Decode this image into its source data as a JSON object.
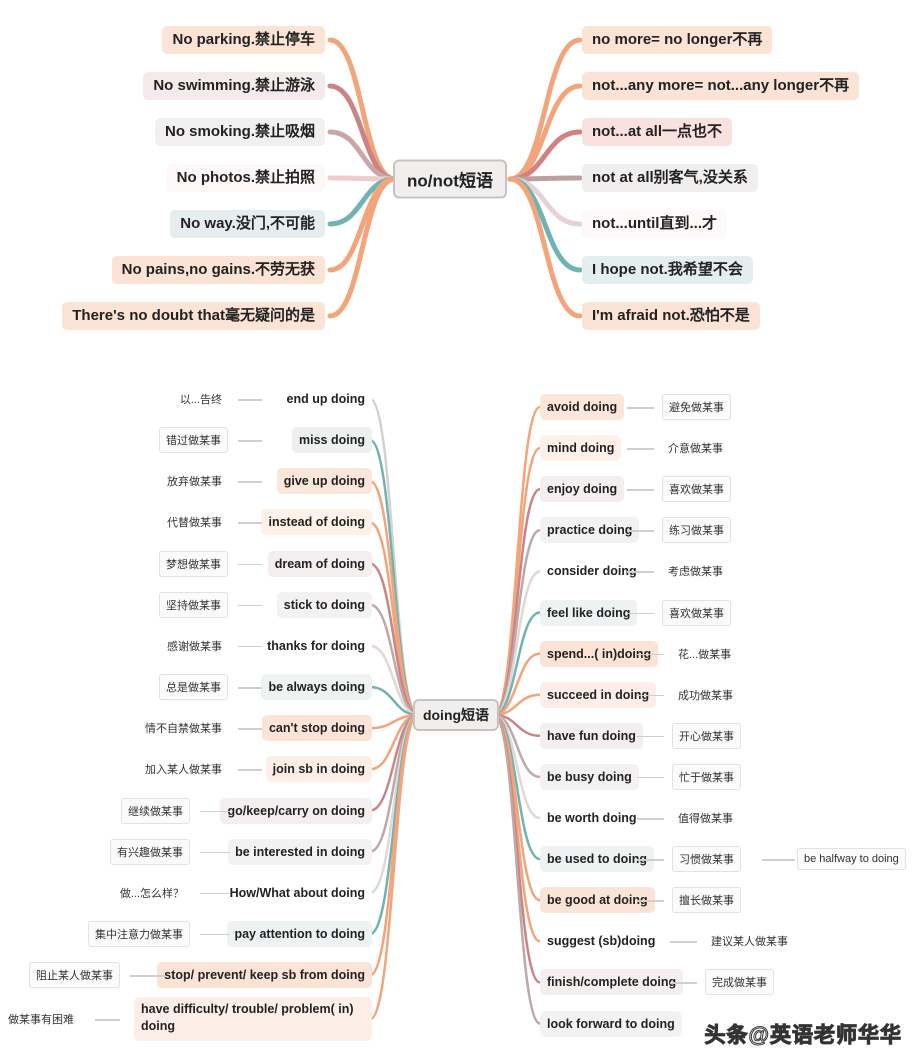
{
  "top_map": {
    "center": "no/not短语",
    "left": [
      {
        "text": "No parking.禁止停车",
        "bg": "#fbe3d6",
        "line": "#f3a47a"
      },
      {
        "text": "No swimming.禁止游泳",
        "bg": "#f4eaea",
        "line": "#c98585"
      },
      {
        "text": "No smoking.禁止吸烟",
        "bg": "#f2efef",
        "line": "#c9a7a7"
      },
      {
        "text": "No photos.禁止拍照",
        "bg": "#fdf8f7",
        "line": "#efcccc"
      },
      {
        "text": "No way.没门,不可能",
        "bg": "#e5eeee",
        "line": "#6fb4b4"
      },
      {
        "text": "No pains,no gains.不劳无获",
        "bg": "#fbe3d6",
        "line": "#f3a47a"
      },
      {
        "text": "There's no doubt that毫无疑问的是",
        "bg": "#fbe3d6",
        "line": "#f3a47a"
      }
    ],
    "right": [
      {
        "text": "no more= no longer不再",
        "bg": "#fbe3d6",
        "line": "#f3a47a"
      },
      {
        "text": "not...any more= not...any longer不再",
        "bg": "#fbe3d6",
        "line": "#f3a47a"
      },
      {
        "text": "not...at all一点也不",
        "bg": "#f8e1df",
        "line": "#d58080"
      },
      {
        "text": "not at all别客气,没关系",
        "bg": "#f1eeee",
        "line": "#bca0a0"
      },
      {
        "text": "not...until直到...才",
        "bg": "#fdf9f8",
        "line": "#e9cfd6"
      },
      {
        "text": "I hope not.我希望不会",
        "bg": "#e5eeee",
        "line": "#6fb4b4"
      },
      {
        "text": "I'm afraid not.恐怕不是",
        "bg": "#fbe3d6",
        "line": "#f3a47a"
      }
    ]
  },
  "bottom_map": {
    "center": "doing短语",
    "left": [
      {
        "en": "end up doing",
        "zh": "以...告终",
        "bg": "#ffffff",
        "box": false,
        "line": "#d8d0d0"
      },
      {
        "en": "miss doing",
        "zh": "错过做某事",
        "bg": "#eef0f0",
        "box": true,
        "line": "#6fb4b4"
      },
      {
        "en": "give up doing",
        "zh": "放弃做某事",
        "bg": "#fbe6da",
        "box": false,
        "line": "#f3a47a"
      },
      {
        "en": "instead of doing",
        "zh": "代替做某事",
        "bg": "#fdf1ea",
        "box": false,
        "line": "#f3a47a"
      },
      {
        "en": "dream of doing",
        "zh": "梦想做某事",
        "bg": "#f4eeee",
        "box": true,
        "line": "#c98585"
      },
      {
        "en": "stick to doing",
        "zh": "坚持做某事",
        "bg": "#f3f1f1",
        "box": true,
        "line": "#c0a8a8"
      },
      {
        "en": "thanks for doing",
        "zh": "感谢做某事",
        "bg": "#ffffff",
        "box": false,
        "line": "#e2d6d8"
      },
      {
        "en": "be always doing",
        "zh": "总是做某事",
        "bg": "#eef2f2",
        "box": true,
        "line": "#6fb4b4"
      },
      {
        "en": "can't stop doing",
        "zh": "情不自禁做某事",
        "bg": "#fbe3d6",
        "box": false,
        "line": "#f3a47a"
      },
      {
        "en": "join sb in doing",
        "zh": "加入某人做某事",
        "bg": "#fdefe7",
        "box": false,
        "line": "#f3a47a"
      },
      {
        "en": "go/keep/carry on doing",
        "zh": "继续做某事",
        "bg": "#f4eeee",
        "box": true,
        "line": "#c98585"
      },
      {
        "en": "be interested in doing",
        "zh": "有兴趣做某事",
        "bg": "#f3f1f1",
        "box": true,
        "line": "#c0a8a8"
      },
      {
        "en": "How/What about doing",
        "zh": "做...怎么样？",
        "bg": "#ffffff",
        "box": false,
        "line": "#e2d6d8"
      },
      {
        "en": "pay attention to doing",
        "zh": "集中注意力做某事",
        "bg": "#eef2f2",
        "box": true,
        "line": "#6fb4b4"
      },
      {
        "en": "stop/ prevent/ keep sb from doing",
        "zh": "阻止某人做某事",
        "bg": "#fbe3d6",
        "box": true,
        "line": "#f3a47a"
      },
      {
        "en": "have difficulty/ trouble/ problem( in) doing",
        "zh": "做某事有困难",
        "bg": "#fdefe7",
        "box": false,
        "line": "#f3a47a"
      }
    ],
    "right": [
      {
        "en": "avoid doing",
        "zh": "避免做某事",
        "bg": "#fbe6da",
        "box": true,
        "line": "#f3a47a"
      },
      {
        "en": "mind doing",
        "zh": "介意做某事",
        "bg": "#fdf1ea",
        "box": false,
        "line": "#f3a47a"
      },
      {
        "en": "enjoy doing",
        "zh": "喜欢做某事",
        "bg": "#f4eeee",
        "box": true,
        "line": "#c98585"
      },
      {
        "en": "practice doing",
        "zh": "练习做某事",
        "bg": "#f3f1f1",
        "box": true,
        "line": "#c0a8a8"
      },
      {
        "en": "consider doing",
        "zh": "考虑做某事",
        "bg": "#ffffff",
        "box": false,
        "line": "#e2d6d8"
      },
      {
        "en": "feel like doing",
        "zh": "喜欢做某事",
        "bg": "#eef2f2",
        "box": true,
        "line": "#6fb4b4"
      },
      {
        "en": "spend...( in)doing",
        "zh": "花...做某事",
        "bg": "#fbe3d6",
        "box": false,
        "line": "#f3a47a"
      },
      {
        "en": "succeed in doing",
        "zh": "成功做某事",
        "bg": "#fdefe7",
        "box": false,
        "line": "#f3a47a"
      },
      {
        "en": "have fun doing",
        "zh": "开心做某事",
        "bg": "#f4eeee",
        "box": true,
        "line": "#c98585"
      },
      {
        "en": "be busy doing",
        "zh": "忙于做某事",
        "bg": "#f3f1f1",
        "box": true,
        "line": "#c0a8a8"
      },
      {
        "en": "be worth doing",
        "zh": "值得做某事",
        "bg": "#ffffff",
        "box": false,
        "line": "#e2d6d8"
      },
      {
        "en": "be used to doing",
        "zh": "习惯做某事",
        "bg": "#eef2f2",
        "box": true,
        "line": "#6fb4b4",
        "extra": "be halfway to doing"
      },
      {
        "en": "be good at doing",
        "zh": "擅长做某事",
        "bg": "#fbe3d6",
        "box": true,
        "line": "#f3a47a"
      },
      {
        "en": "suggest (sb)doing",
        "zh": "建议某人做某事",
        "bg": "#ffffff",
        "box": false,
        "line": "#f3a47a"
      },
      {
        "en": "finish/complete doing",
        "zh": "完成做某事",
        "bg": "#f4eeee",
        "box": true,
        "line": "#c98585"
      },
      {
        "en": "look forward to doing",
        "zh": "",
        "bg": "#f3f1f1",
        "box": false,
        "line": "#c0a8a8"
      }
    ]
  },
  "watermark": "头条@英语老师华华"
}
